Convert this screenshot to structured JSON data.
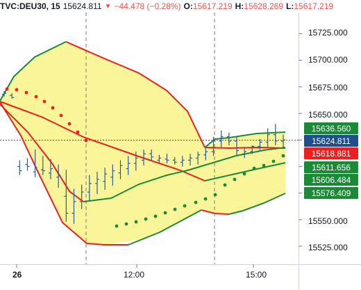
{
  "header": {
    "symbol": "TVC:DEU30, 15",
    "last": "15624.811",
    "change": "−44.478 (−0.28%)",
    "o_label": "O:",
    "o_value": "15617.219",
    "h_label": "H:",
    "h_value": "15628.269",
    "l_label": "L:",
    "l_value": "15617.219"
  },
  "colors": {
    "up": "#1b8a37",
    "down": "#ef1e1e",
    "band_fill": "#fbf59a",
    "candle": "#2a5a9c",
    "current": "#1e4e8c"
  },
  "price_axis": {
    "ticks": [
      "15725.000",
      "15700.000",
      "15675.000",
      "15650.000",
      "15550.000",
      "15525.000"
    ]
  },
  "time_axis": {
    "ticks": [
      {
        "label": "26",
        "bold": true
      },
      {
        "label": "12:00"
      },
      {
        "label": "15:00"
      }
    ]
  },
  "badges": [
    {
      "value": "15636.560",
      "color": "#1b8a37"
    },
    {
      "value": "15624.811",
      "color": "#1e4e8c"
    },
    {
      "value": "15618.881",
      "color": "#ef1e1e"
    },
    {
      "value": "15611.656",
      "color": "#1b8a37"
    },
    {
      "value": "15606.484",
      "color": "#1b8a37"
    },
    {
      "value": "15576.409",
      "color": "#1b8a37"
    }
  ],
  "chart_data": {
    "type": "line",
    "ylim": [
      15508,
      15745
    ],
    "current_price": 15624.811,
    "candles": [
      [
        15668,
        15671,
        15666,
        15669
      ],
      [
        15667,
        15669,
        15664,
        15665
      ],
      [
        15600,
        15606,
        15592,
        15596
      ],
      [
        15602,
        15608,
        15596,
        15600
      ],
      [
        15595,
        15616,
        15590,
        15599
      ],
      [
        15597,
        15610,
        15592,
        15596
      ],
      [
        15594,
        15607,
        15588,
        15598
      ],
      [
        15590,
        15602,
        15580,
        15592
      ],
      [
        15572,
        15597,
        15548,
        15556
      ],
      [
        15556,
        15579,
        15546,
        15567
      ],
      [
        15567,
        15583,
        15560,
        15576
      ],
      [
        15576,
        15592,
        15568,
        15584
      ],
      [
        15584,
        15595,
        15574,
        15588
      ],
      [
        15586,
        15599,
        15578,
        15593
      ],
      [
        15590,
        15602,
        15582,
        15596
      ],
      [
        15594,
        15606,
        15588,
        15601
      ],
      [
        15598,
        15610,
        15592,
        15603
      ],
      [
        15603,
        15614,
        15596,
        15608
      ],
      [
        15606,
        15616,
        15601,
        15612
      ],
      [
        15612,
        15616,
        15605,
        15609
      ],
      [
        15606,
        15611,
        15603,
        15608
      ],
      [
        15607,
        15612,
        15603,
        15606
      ],
      [
        15606,
        15609,
        15602,
        15604
      ],
      [
        15604,
        15610,
        15600,
        15606
      ],
      [
        15606,
        15612,
        15601,
        15608
      ],
      [
        15608,
        15614,
        15602,
        15611
      ],
      [
        15611,
        15618,
        15606,
        15614
      ],
      [
        15614,
        15628,
        15610,
        15624
      ],
      [
        15624,
        15634,
        15618,
        15628
      ],
      [
        15628,
        15632,
        15620,
        15624
      ],
      [
        15624,
        15628,
        15610,
        15615
      ],
      [
        15612,
        15618,
        15608,
        15614
      ],
      [
        15614,
        15620,
        15612,
        15619
      ],
      [
        15619,
        15626,
        15615,
        15623
      ],
      [
        15623,
        15636,
        15618,
        15630
      ],
      [
        15630,
        15640,
        15620,
        15624
      ],
      [
        15624,
        15630,
        15617,
        15625
      ]
    ]
  }
}
